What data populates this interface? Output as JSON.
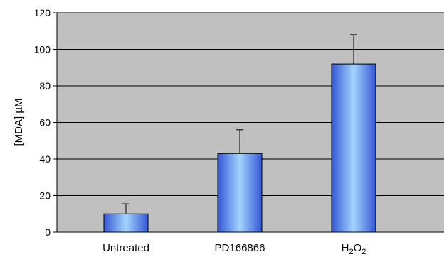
{
  "chart_data": {
    "type": "bar",
    "title": "",
    "xlabel": "",
    "ylabel": "[MDA] µM",
    "ylim": [
      0,
      120
    ],
    "yticks": [
      0,
      20,
      40,
      60,
      80,
      100,
      120
    ],
    "grid": true,
    "legend": "none",
    "categories": [
      {
        "text": "Untreated",
        "sub": []
      },
      {
        "text": "PD166866",
        "sub": []
      },
      {
        "text": "H",
        "sub": [
          "2",
          "O",
          "2"
        ]
      }
    ],
    "category_names": [
      "Untreated",
      "PD166866",
      "H2O2"
    ],
    "values": [
      10,
      43,
      92
    ],
    "errors": [
      5.5,
      13,
      16
    ],
    "colors": {
      "plot_background": "#c0c0c0",
      "bar_edge": "#3b5bd9",
      "bar_center": "#9fd0ff",
      "gridline": "#000000"
    }
  }
}
